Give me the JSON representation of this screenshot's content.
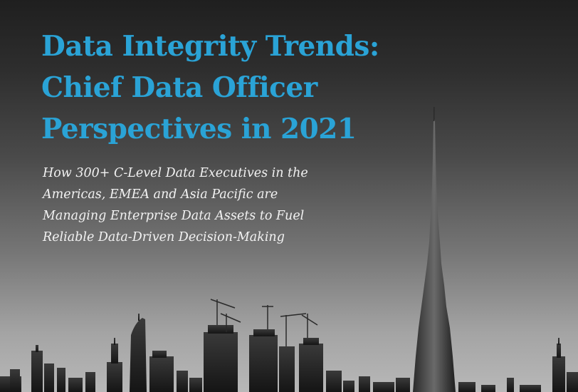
{
  "cover": {
    "title_lines": [
      "Data Integrity Trends:",
      "Chief Data Officer",
      "Perspectives in 2021"
    ],
    "subtitle_lines": [
      "How 300+ C-Level Data Executives in the",
      "Americas, EMEA and Asia Pacific are",
      "Managing Enterprise Data Assets to Fuel",
      "Reliable Data-Driven Decision-Making"
    ],
    "title_color": "#2aa3d6",
    "subtitle_color": "#f2f2f2"
  }
}
